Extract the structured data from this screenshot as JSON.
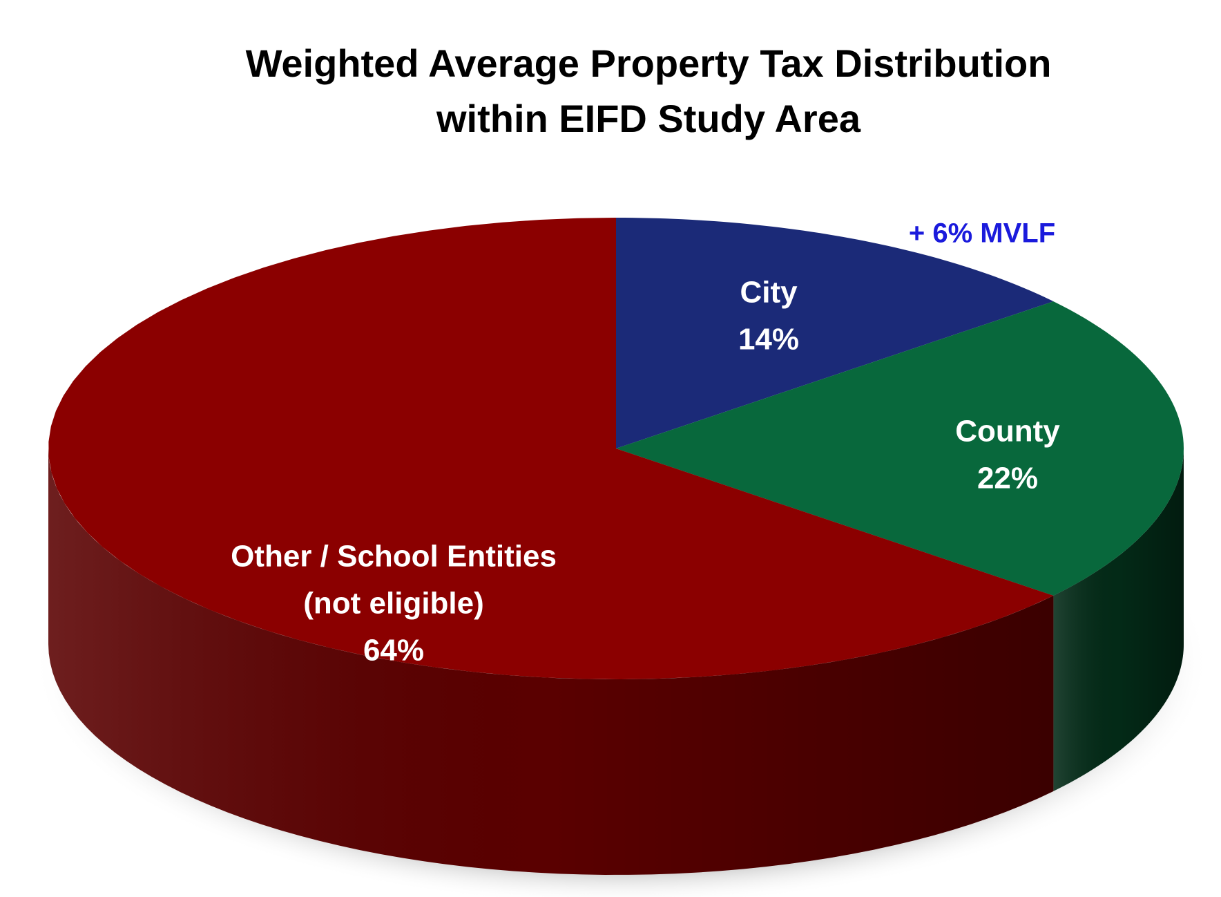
{
  "chart_data": {
    "type": "pie",
    "title": [
      "Weighted Average Property Tax Distribution",
      "within EIFD Study Area"
    ],
    "categories": [
      [
        "City"
      ],
      [
        "County"
      ],
      [
        "Other / School Entities",
        "(not eligible)"
      ]
    ],
    "values": [
      14,
      22,
      64
    ],
    "value_labels": [
      "14%",
      "22%",
      "64%"
    ],
    "colors": [
      "#1b2a78",
      "#08683c",
      "#8b0000"
    ],
    "side_colors": [
      "#0e1642",
      "#032a17",
      "#5a0000"
    ],
    "annotation": "+ 6% MVLF",
    "annotation_color": "#1a1adc"
  }
}
